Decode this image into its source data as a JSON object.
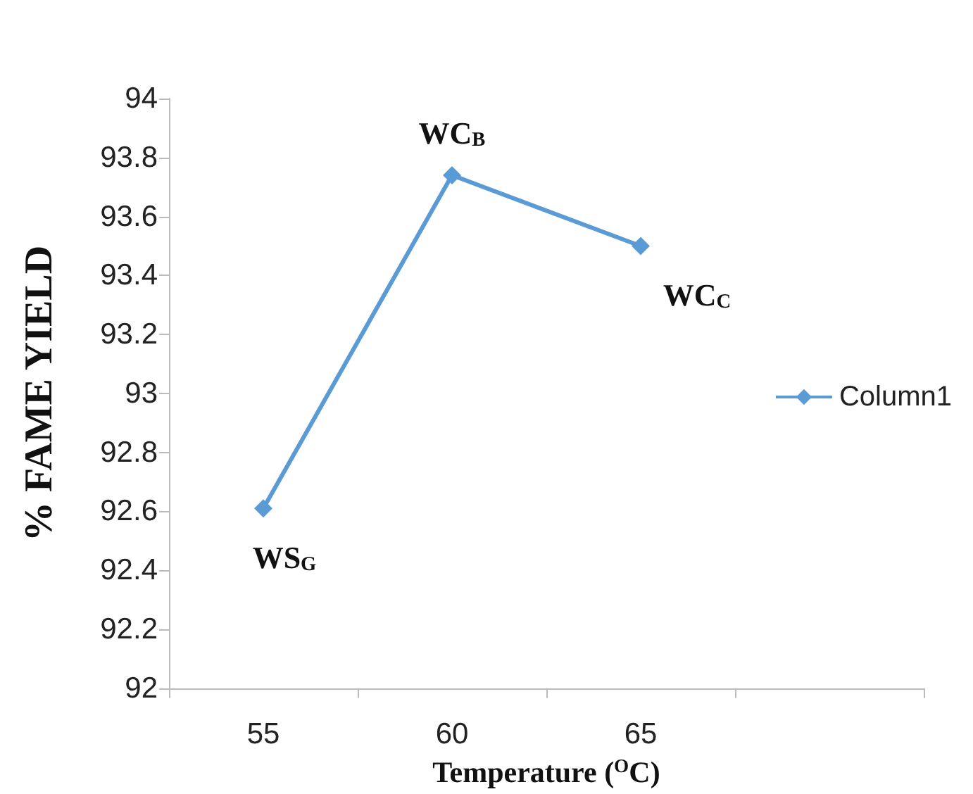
{
  "chart_data": {
    "type": "line",
    "xlabel": "Temperature ($^{O}$C)",
    "ylabel": "% FAME YIELD",
    "categories": [
      "55",
      "60",
      "65",
      null
    ],
    "series": [
      {
        "name": "Column1",
        "color": "#5b9bd5",
        "values": [
          92.61,
          93.74,
          93.5,
          null
        ]
      }
    ],
    "ylim": [
      92,
      94
    ],
    "yticks": [
      92,
      92.2,
      92.4,
      92.6,
      92.8,
      93,
      93.2,
      93.4,
      93.6,
      93.8,
      94
    ],
    "annotations": [
      {
        "text": "WS$_{G}$",
        "x": "55",
        "y": 92.61
      },
      {
        "text": "WC$_{B}$",
        "x": "60",
        "y": 93.74
      },
      {
        "text": "WC$_{C}$",
        "x": "65",
        "y": 93.5
      }
    ],
    "grid": false,
    "legend": "right",
    "marker": "diamond",
    "line_style": "solid"
  }
}
